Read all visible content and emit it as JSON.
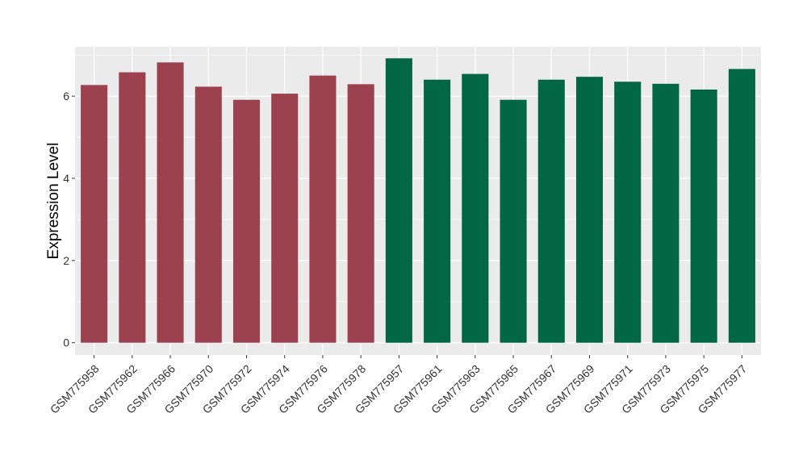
{
  "chart_data": {
    "type": "bar",
    "title": "",
    "xlabel": "",
    "ylabel": "Expression Level",
    "ylim": [
      -0.3,
      7.2
    ],
    "yticks": [
      0,
      2,
      4,
      6
    ],
    "grid": true,
    "legend": "none",
    "background": "#EBEBEB",
    "gridline_color": "#FFFFFF",
    "categories": [
      "GSM775958",
      "GSM775962",
      "GSM775966",
      "GSM775970",
      "GSM775972",
      "GSM775974",
      "GSM775976",
      "GSM775978",
      "GSM775957",
      "GSM775961",
      "GSM775963",
      "GSM775965",
      "GSM775967",
      "GSM775969",
      "GSM775971",
      "GSM775973",
      "GSM775975",
      "GSM775977"
    ],
    "values": [
      6.27,
      6.58,
      6.82,
      6.23,
      5.91,
      6.06,
      6.5,
      6.29,
      6.92,
      6.4,
      6.54,
      5.91,
      6.4,
      6.47,
      6.35,
      6.3,
      6.16,
      6.66
    ],
    "group_colors": [
      "#9B4150",
      "#9B4150",
      "#9B4150",
      "#9B4150",
      "#9B4150",
      "#9B4150",
      "#9B4150",
      "#9B4150",
      "#006644",
      "#006644",
      "#006644",
      "#006644",
      "#006644",
      "#006644",
      "#006644",
      "#006644",
      "#006644",
      "#006644"
    ]
  }
}
